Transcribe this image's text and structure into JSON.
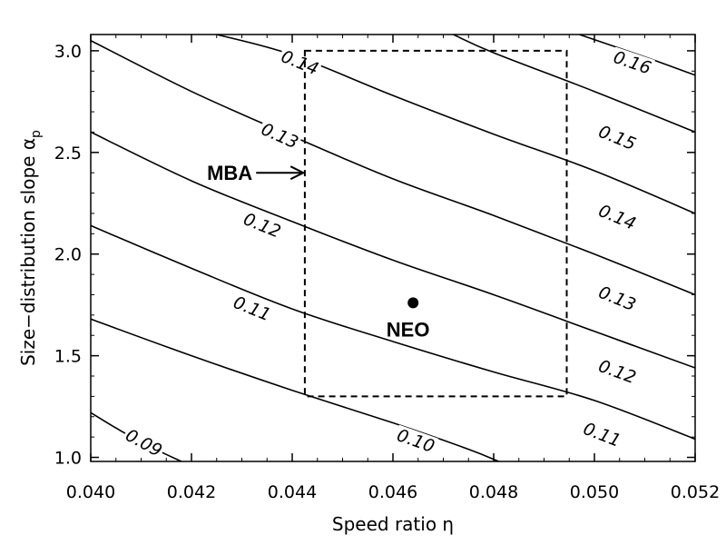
{
  "chart_data": {
    "type": "line",
    "title": "",
    "xlabel": "Speed ratio η",
    "ylabel_main": "Size−distribution slope α",
    "ylabel_sub": "p",
    "xlim": [
      0.04,
      0.052
    ],
    "ylim": [
      0.98,
      3.08
    ],
    "xticks": [
      {
        "value": 0.04,
        "label": "0.040"
      },
      {
        "value": 0.042,
        "label": "0.042"
      },
      {
        "value": 0.044,
        "label": "0.044"
      },
      {
        "value": 0.046,
        "label": "0.046"
      },
      {
        "value": 0.048,
        "label": "0.048"
      },
      {
        "value": 0.05,
        "label": "0.050"
      },
      {
        "value": 0.052,
        "label": "0.052"
      }
    ],
    "yticks": [
      {
        "value": 1.0,
        "label": "1.0"
      },
      {
        "value": 1.5,
        "label": "1.5"
      },
      {
        "value": 2.0,
        "label": "2.0"
      },
      {
        "value": 2.5,
        "label": "2.5"
      },
      {
        "value": 3.0,
        "label": "3.0"
      }
    ],
    "grid": false,
    "contours": [
      {
        "level": "0.09",
        "points": [
          [
            0.04,
            1.22
          ],
          [
            0.0406,
            1.13
          ],
          [
            0.0412,
            1.05
          ],
          [
            0.0418,
            0.98
          ]
        ],
        "label_at": [
          0.04105,
          1.07
        ]
      },
      {
        "level": "0.10",
        "points": [
          [
            0.04,
            1.68
          ],
          [
            0.042,
            1.5
          ],
          [
            0.044,
            1.33
          ],
          [
            0.046,
            1.17
          ],
          [
            0.0475,
            1.04
          ],
          [
            0.0481,
            0.98
          ]
        ],
        "label_at": [
          0.04645,
          1.08
        ]
      },
      {
        "level": "0.11",
        "points": [
          [
            0.04,
            2.14
          ],
          [
            0.042,
            1.93
          ],
          [
            0.044,
            1.73
          ],
          [
            0.046,
            1.57
          ],
          [
            0.048,
            1.42
          ],
          [
            0.05,
            1.28
          ],
          [
            0.052,
            1.09
          ]
        ],
        "label_at": [
          0.05015,
          1.11
        ]
      },
      {
        "level": "0.12",
        "points": [
          [
            0.04,
            2.6
          ],
          [
            0.042,
            2.36
          ],
          [
            0.044,
            2.16
          ],
          [
            0.046,
            1.97
          ],
          [
            0.048,
            1.8
          ],
          [
            0.05,
            1.62
          ],
          [
            0.052,
            1.44
          ]
        ],
        "label_at": [
          0.05045,
          1.42
        ]
      },
      {
        "level": "0.13",
        "points": [
          [
            0.04,
            3.05
          ],
          [
            0.042,
            2.8
          ],
          [
            0.044,
            2.58
          ],
          [
            0.046,
            2.37
          ],
          [
            0.048,
            2.19
          ],
          [
            0.05,
            2.0
          ],
          [
            0.052,
            1.8
          ]
        ],
        "label_at": [
          0.05045,
          1.78
        ]
      },
      {
        "level": "0.14",
        "points": [
          [
            0.0425,
            3.08
          ],
          [
            0.044,
            2.98
          ],
          [
            0.046,
            2.78
          ],
          [
            0.048,
            2.59
          ],
          [
            0.05,
            2.41
          ],
          [
            0.052,
            2.2
          ]
        ],
        "label_at": [
          0.05045,
          2.18
        ]
      },
      {
        "level": "0.15",
        "points": [
          [
            0.0472,
            3.08
          ],
          [
            0.048,
            2.99
          ],
          [
            0.05,
            2.8
          ],
          [
            0.052,
            2.6
          ]
        ],
        "label_at": [
          0.05045,
          2.57
        ]
      },
      {
        "level": "0.16",
        "points": [
          [
            0.0497,
            3.08
          ],
          [
            0.051,
            2.97
          ],
          [
            0.052,
            2.88
          ]
        ],
        "label_at": [
          0.05075,
          2.94
        ]
      }
    ],
    "inline_contour_labels": [
      {
        "text": "0.14",
        "at": [
          0.04415,
          2.94
        ]
      },
      {
        "text": "0.13",
        "at": [
          0.04375,
          2.58
        ]
      },
      {
        "text": "0.12",
        "at": [
          0.0434,
          2.14
        ]
      },
      {
        "text": "0.11",
        "at": [
          0.0432,
          1.73
        ]
      }
    ],
    "region_box": {
      "x": [
        0.04425,
        0.04945
      ],
      "y": [
        1.3,
        3.0
      ]
    },
    "points": [
      {
        "name": "NEO",
        "x": 0.0464,
        "y": 1.76
      }
    ],
    "annotations": [
      {
        "text": "MBA",
        "arrow_to": [
          0.04422,
          2.4
        ]
      },
      {
        "text": "NEO",
        "at": [
          0.0463,
          1.63
        ]
      }
    ]
  }
}
